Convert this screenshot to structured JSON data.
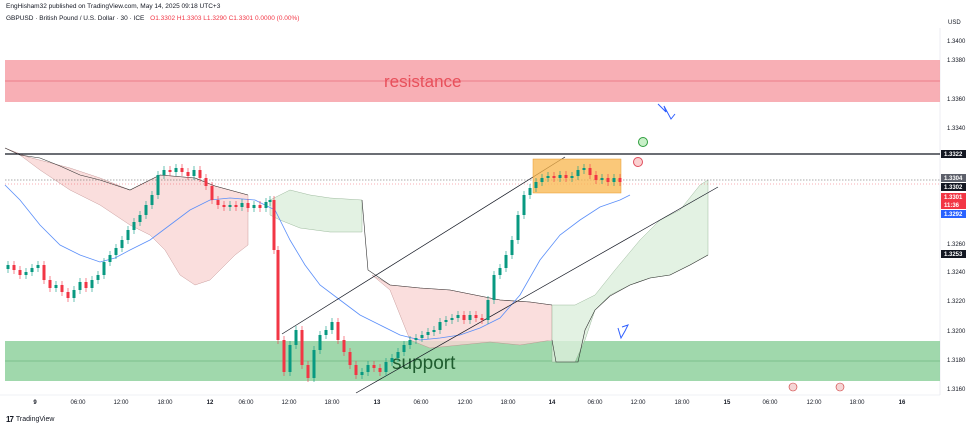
{
  "header": {
    "publisher": "EngHisham32 published on TradingView.com, May 14, 2025 09:18 UTC+3",
    "instrument": "GBPUSD · British Pound / U.S. Dollar · 30 · ICE",
    "ohlc": "O1.3302  H1.3303  L1.3290  C1.3301  0.0000 (0.00%)"
  },
  "footer": {
    "logo": "17",
    "brand": "TradingView"
  },
  "chart_data": {
    "type": "candlestick",
    "currency": "USD",
    "ylim": [
      1.315,
      1.3415
    ],
    "y_ticks": [
      "1.3400",
      "1.3380",
      "1.3360",
      "1.3340",
      "1.3260",
      "1.3240",
      "1.3220",
      "1.3200",
      "1.3180",
      "1.3160"
    ],
    "x_ticks": [
      "9",
      "06:00",
      "12:00",
      "18:00",
      "12",
      "06:00",
      "12:00",
      "18:00",
      "13",
      "06:00",
      "12:00",
      "18:00",
      "14",
      "06:00",
      "12:00",
      "18:00",
      "15",
      "06:00",
      "12:00",
      "18:00",
      "16"
    ],
    "price_tags": [
      {
        "value": "1.3322",
        "style": "black"
      },
      {
        "value": "1.3304",
        "style": "gray"
      },
      {
        "value": "1.3302",
        "style": "black"
      },
      {
        "value": "1.3301",
        "style": "red"
      },
      {
        "value": "11:36",
        "style": "red"
      },
      {
        "value": "1.3292",
        "style": "blue"
      },
      {
        "value": "1.3253",
        "style": "black"
      }
    ],
    "zones": [
      {
        "label": "resistance",
        "from": 1.3357,
        "to": 1.3387,
        "color": "#f7a1a8"
      },
      {
        "label": "support",
        "from": 1.3166,
        "to": 1.3193,
        "color": "#8fd19e"
      }
    ],
    "horizontal_lines": [
      1.3322
    ],
    "colors": {
      "up": "#089981",
      "down": "#f23645",
      "ma": "#5b8ff9",
      "cloud_red": "#f9d6d5",
      "cloud_green": "#dcefdc",
      "highlight": "#f8b64c"
    }
  }
}
